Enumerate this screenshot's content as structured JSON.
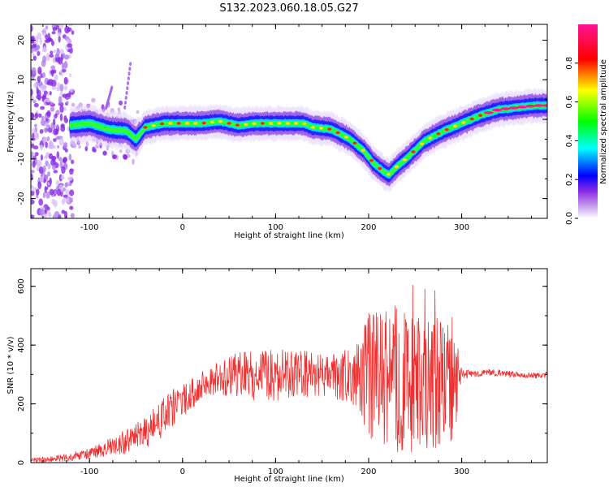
{
  "title": "S132.2023.060.18.05.G27",
  "chart_data": [
    {
      "type": "heatmap",
      "xlabel": "Height of straight line (km)",
      "ylabel": "Frequency (Hz)",
      "xlim": [
        -163,
        392
      ],
      "ylim": [
        -25,
        24
      ],
      "x_ticks": [
        -100,
        0,
        100,
        200,
        300
      ],
      "y_ticks": [
        -20,
        -10,
        0,
        10,
        20
      ],
      "grid": false,
      "colorbar": {
        "label": "Normalized spectral amplitude",
        "range": [
          0,
          1
        ],
        "ticks": [
          "0.0",
          "0.2",
          "0.4",
          "0.6",
          "0.8"
        ],
        "colormap": [
          "#ffffff",
          "#8a2be2",
          "#0000ff",
          "#00ffff",
          "#00ff00",
          "#ffff00",
          "#ff0000",
          "#ff1493"
        ]
      },
      "ridge": {
        "x": [
          -120,
          -100,
          -80,
          -60,
          -50,
          -40,
          -20,
          0,
          20,
          40,
          60,
          80,
          100,
          120,
          130,
          140,
          160,
          180,
          195,
          205,
          215,
          222,
          230,
          240,
          260,
          280,
          300,
          320,
          340,
          360,
          380,
          392
        ],
        "y": [
          -1.5,
          -1,
          -2.5,
          -3,
          -5,
          -2,
          -1,
          -1,
          -1,
          -0.5,
          -1.5,
          -1,
          -1,
          -1,
          -1,
          -2,
          -2.5,
          -5,
          -8,
          -11,
          -13,
          -14,
          -12,
          -10,
          -5.5,
          -3,
          -1,
          1,
          2.5,
          3,
          3.5,
          3.5
        ]
      }
    },
    {
      "type": "line",
      "xlabel": "Height of straight line (km)",
      "ylabel": "SNR (10 * v/v)",
      "xlim": [
        -163,
        392
      ],
      "ylim": [
        0,
        660
      ],
      "x_ticks": [
        -100,
        0,
        100,
        200,
        300
      ],
      "y_ticks": [
        0,
        200,
        400,
        600
      ],
      "color": "#f03030",
      "grid": false,
      "series": [
        {
          "x": [
            -163,
            -140,
            -120,
            -100,
            -80,
            -60,
            -45,
            -35,
            -25,
            -15,
            -5,
            5,
            15,
            25,
            40,
            60,
            80,
            100,
            120,
            140,
            160,
            180,
            190,
            200,
            210,
            220,
            230,
            240,
            250,
            260,
            270,
            280,
            290,
            300,
            320,
            340,
            360,
            380,
            392
          ],
          "y": [
            8,
            12,
            18,
            30,
            50,
            70,
            90,
            110,
            140,
            170,
            200,
            220,
            250,
            270,
            290,
            295,
            300,
            300,
            295,
            300,
            290,
            300,
            290,
            290,
            280,
            300,
            280,
            280,
            260,
            270,
            260,
            280,
            270,
            300,
            305,
            305,
            300,
            295,
            300
          ],
          "spread": [
            8,
            10,
            15,
            20,
            30,
            45,
            55,
            60,
            70,
            70,
            60,
            55,
            50,
            50,
            60,
            80,
            90,
            90,
            90,
            80,
            80,
            90,
            120,
            220,
            240,
            250,
            260,
            250,
            240,
            230,
            230,
            240,
            240,
            15,
            12,
            12,
            10,
            10,
            10
          ]
        }
      ]
    }
  ]
}
